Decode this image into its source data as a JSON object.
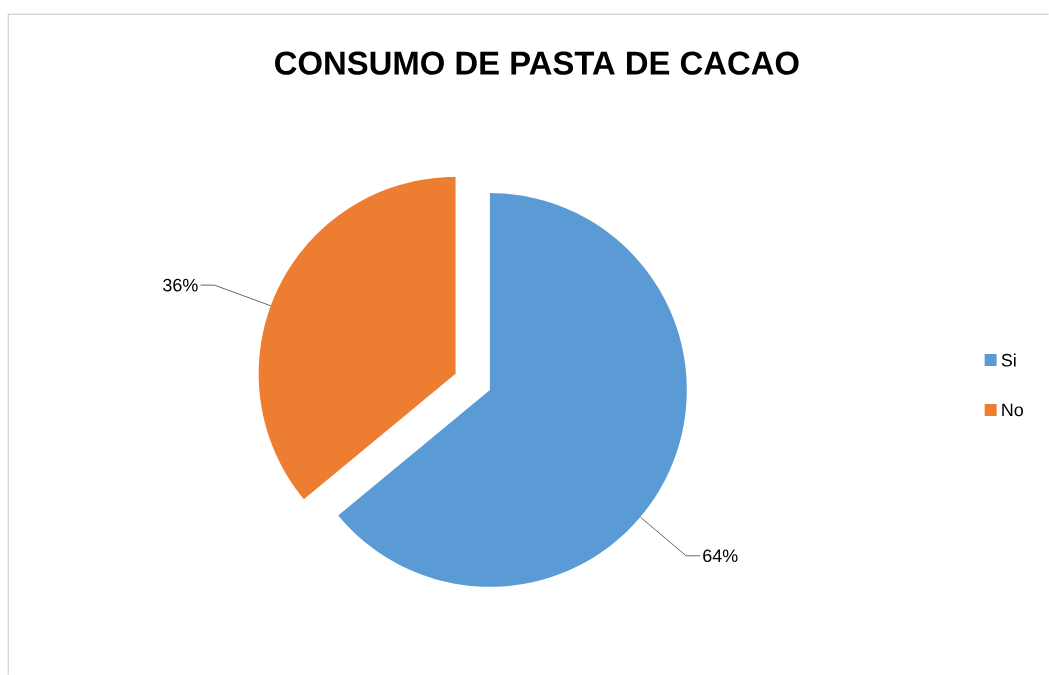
{
  "chart_data": {
    "type": "pie",
    "title": "CONSUMO DE PASTA DE CACAO",
    "categories": [
      "Si",
      "No"
    ],
    "values": [
      64,
      36
    ],
    "colors": [
      "#5b9bd5",
      "#ed7d31"
    ],
    "value_labels": [
      "64%",
      "36%"
    ],
    "legend": "right"
  }
}
